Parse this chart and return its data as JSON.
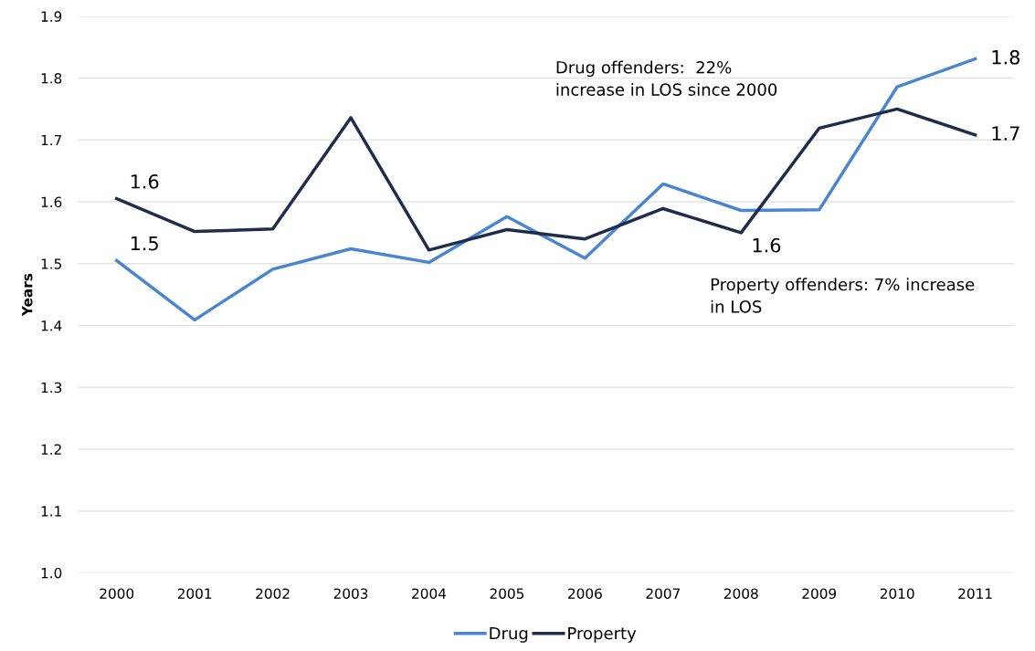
{
  "chart_data": {
    "type": "line",
    "ylabel": "Years",
    "categories": [
      "2000",
      "2001",
      "2002",
      "2003",
      "2004",
      "2005",
      "2006",
      "2007",
      "2008",
      "2009",
      "2010",
      "2011"
    ],
    "series": [
      {
        "name": "Drug",
        "color": "#4a86d0",
        "values": [
          1.505,
          1.409,
          1.491,
          1.524,
          1.502,
          1.576,
          1.509,
          1.629,
          1.586,
          1.587,
          1.786,
          1.831
        ],
        "value_labels": [
          "1.5",
          null,
          null,
          null,
          null,
          null,
          null,
          null,
          null,
          null,
          null,
          "1.8"
        ]
      },
      {
        "name": "Property",
        "color": "#1f2d4d",
        "values": [
          1.605,
          1.552,
          1.556,
          1.736,
          1.522,
          1.555,
          1.54,
          1.589,
          1.55,
          1.719,
          1.75,
          1.708
        ],
        "value_labels": [
          "1.6",
          null,
          null,
          null,
          null,
          null,
          null,
          null,
          "1.6",
          null,
          null,
          "1.7"
        ]
      }
    ],
    "ylim": [
      1.0,
      1.9
    ],
    "yticks": [
      {
        "value": 1.0,
        "label": "1.0"
      },
      1.1,
      1.2,
      1.3,
      1.4,
      1.5,
      1.6,
      1.7,
      1.8,
      1.9
    ],
    "grid": "y",
    "legend": "bottom",
    "marker": "none",
    "line_style": "solid",
    "annotations": [
      "Drug offenders:  22%\nincrease in LOS since 2000",
      "Property offenders: 7% increase\nin LOS"
    ]
  }
}
